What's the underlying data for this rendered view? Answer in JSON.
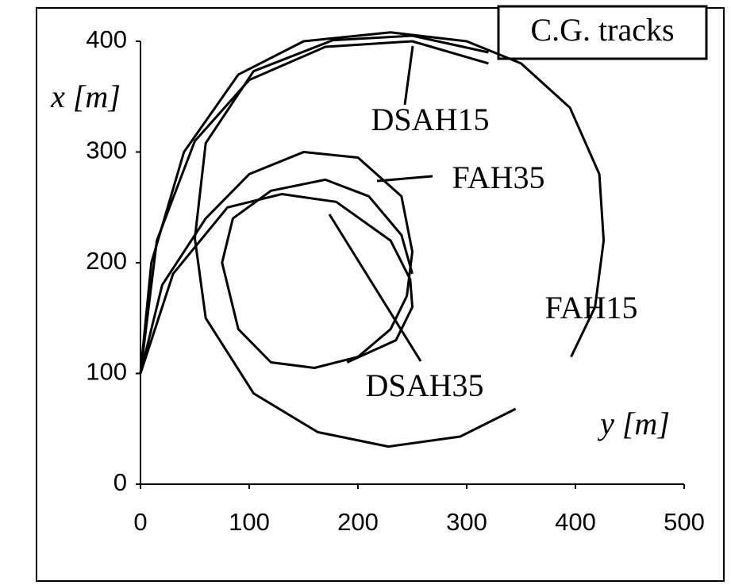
{
  "chart_data": {
    "type": "line",
    "title": "C.G. tracks",
    "x_label": "y [m]",
    "y_label": "x [m]",
    "xlim": [
      0,
      500
    ],
    "xticks": [
      0,
      100,
      200,
      300,
      400,
      500
    ],
    "ylim": [
      0,
      400
    ],
    "yticks": [
      0,
      100,
      200,
      300,
      400
    ],
    "grid": false,
    "series": [
      {
        "name": "FAH15",
        "color": "#000000",
        "x": [
          0,
          10,
          40,
          90,
          150,
          230,
          300,
          350,
          395,
          422,
          426,
          418,
          396,
          null,
          345,
          294,
          228,
          163,
          104,
          60,
          50,
          60,
          104,
          177,
          250,
          320
        ],
        "values": [
          100,
          200,
          300,
          370,
          400,
          408,
          400,
          380,
          340,
          280,
          220,
          160,
          115,
          null,
          68,
          43,
          34,
          47,
          82,
          150,
          222,
          308,
          373,
          401,
          405,
          390
        ]
      },
      {
        "name": "DSAH15",
        "color": "#000000",
        "x": [
          0,
          15,
          50,
          100,
          170,
          250,
          320
        ],
        "values": [
          100,
          220,
          310,
          365,
          395,
          400,
          380
        ]
      },
      {
        "name": "FAH35",
        "color": "#000000",
        "x": [
          0,
          20,
          60,
          100,
          150,
          200,
          240,
          250,
          245,
          230,
          200,
          160,
          120,
          90,
          75,
          85,
          120,
          170,
          210,
          240,
          250
        ],
        "values": [
          100,
          180,
          240,
          280,
          300,
          295,
          260,
          210,
          170,
          140,
          115,
          105,
          110,
          140,
          200,
          240,
          265,
          275,
          260,
          225,
          190
        ]
      },
      {
        "name": "DSAH35",
        "color": "#000000",
        "x": [
          0,
          30,
          80,
          130,
          180,
          230,
          248,
          250,
          235,
          190
        ],
        "values": [
          100,
          190,
          250,
          262,
          255,
          220,
          185,
          160,
          130,
          110
        ]
      }
    ]
  }
}
